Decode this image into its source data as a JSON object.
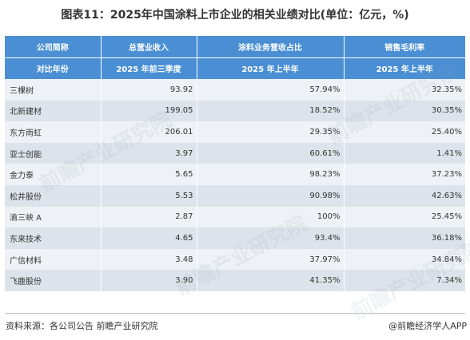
{
  "title": "图表11：2025年中国涂料上市企业的相关业绩对比(单位：亿元，%)",
  "header": {
    "row1": [
      "公司简称",
      "总营业收入",
      "涂料业务营收占比",
      "销售毛利率"
    ],
    "row2": [
      "对比年份",
      "2025 年前三季度",
      "2025 年上半年",
      "2025 年上半年"
    ]
  },
  "rows": [
    {
      "company": "三棵树",
      "revenue": "93.92",
      "share": "57.94%",
      "margin": "32.35%"
    },
    {
      "company": "北新建材",
      "revenue": "199.05",
      "share": "18.52%",
      "margin": "30.35%"
    },
    {
      "company": "东方雨虹",
      "revenue": "206.01",
      "share": "29.35%",
      "margin": "25.40%"
    },
    {
      "company": "亚士创能",
      "revenue": "3.97",
      "share": "60.61%",
      "margin": "1.41%"
    },
    {
      "company": "金力泰",
      "revenue": "5.65",
      "share": "98.23%",
      "margin": "37.23%"
    },
    {
      "company": "松井股份",
      "revenue": "5.53",
      "share": "90.98%",
      "margin": "42.63%"
    },
    {
      "company": "渝三峡 A",
      "revenue": "2.87",
      "share": "100%",
      "margin": "25.45%"
    },
    {
      "company": "东来技术",
      "revenue": "4.65",
      "share": "93.4%",
      "margin": "36.18%"
    },
    {
      "company": "广信材料",
      "revenue": "3.48",
      "share": "37.97%",
      "margin": "34.84%"
    },
    {
      "company": "飞鹿股份",
      "revenue": "3.90",
      "share": "41.35%",
      "margin": "7.34%"
    }
  ],
  "footer": {
    "source": "资料来源：各公司公告 前瞻产业研究院",
    "brand": "@前瞻经济学人APP"
  },
  "colors": {
    "header_bg": "#4a8fd4",
    "row_light": "#eef1f5",
    "row_dark": "#dde3ea"
  },
  "chart_data": {
    "type": "table",
    "title": "图表11：2025年中国涂料上市企业的相关业绩对比(单位：亿元，%)",
    "columns": [
      "公司简称",
      "总营业收入",
      "涂料业务营收占比",
      "销售毛利率"
    ],
    "periods": [
      "对比年份",
      "2025 年前三季度",
      "2025 年上半年",
      "2025 年上半年"
    ],
    "categories": [
      "三棵树",
      "北新建材",
      "东方雨虹",
      "亚士创能",
      "金力泰",
      "松井股份",
      "渝三峡 A",
      "东来技术",
      "广信材料",
      "飞鹿股份"
    ],
    "series": [
      {
        "name": "总营业收入",
        "values": [
          93.92,
          199.05,
          206.01,
          3.97,
          5.65,
          5.53,
          2.87,
          4.65,
          3.48,
          3.9
        ]
      },
      {
        "name": "涂料业务营收占比",
        "values": [
          57.94,
          18.52,
          29.35,
          60.61,
          98.23,
          90.98,
          100,
          93.4,
          37.97,
          41.35
        ]
      },
      {
        "name": "销售毛利率",
        "values": [
          32.35,
          30.35,
          25.4,
          1.41,
          37.23,
          42.63,
          25.45,
          36.18,
          34.84,
          7.34
        ]
      }
    ]
  }
}
